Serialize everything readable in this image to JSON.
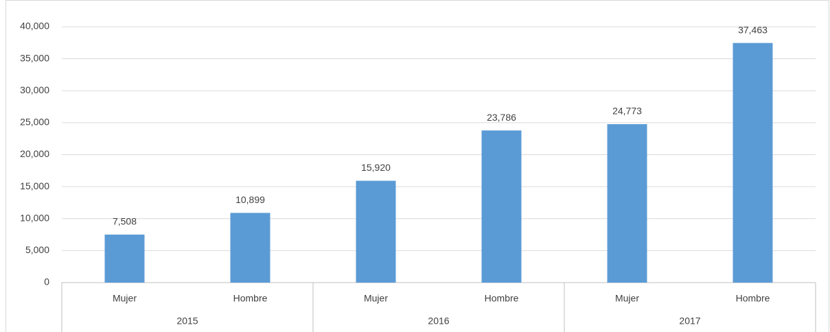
{
  "chart_data": {
    "type": "bar",
    "categories": [
      "Mujer",
      "Hombre",
      "Mujer",
      "Hombre",
      "Mujer",
      "Hombre"
    ],
    "groups": [
      "2015",
      "2016",
      "2017"
    ],
    "values": [
      7508,
      10899,
      15920,
      23786,
      24773,
      37463
    ],
    "value_labels": [
      "7,508",
      "10,899",
      "15,920",
      "23,786",
      "24,773",
      "37,463"
    ],
    "color": "#5b9bd5",
    "ylim": [
      0,
      40000
    ],
    "yticks": [
      0,
      {
        "value": 5000,
        "label": "5,000"
      },
      {
        "value": 10000,
        "label": "10,000"
      },
      {
        "value": 15000,
        "label": "15,000"
      },
      {
        "value": 20000,
        "label": "20,000"
      },
      {
        "value": 25000,
        "label": "25,000"
      },
      {
        "value": 30000,
        "label": "30,000"
      },
      {
        "value": 35000,
        "label": "35,000"
      },
      {
        "value": 40000,
        "label": "40,000"
      }
    ],
    "grid": true
  }
}
